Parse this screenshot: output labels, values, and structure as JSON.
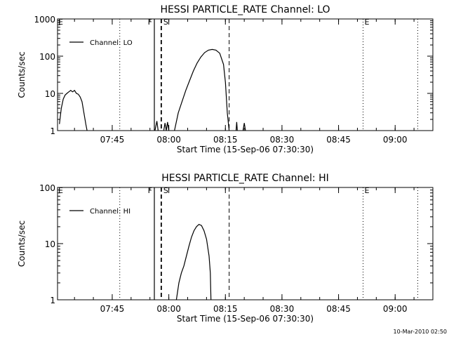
{
  "chart_data": [
    {
      "type": "line",
      "title": "HESSI PARTICLE_RATE Channel: LO",
      "xlabel": "Start Time (15-Sep-06 07:30:30)",
      "ylabel": "Counts/sec",
      "yscale": "log",
      "ylim": [
        1,
        1000
      ],
      "xlim": [
        "07:30:30",
        "09:10:00"
      ],
      "xticks": [
        "07:45",
        "08:00",
        "08:15",
        "08:30",
        "08:45",
        "09:00"
      ],
      "yticks": [
        "1",
        "10",
        "100",
        "1000"
      ],
      "legend": {
        "label": "Channel: LO",
        "position": "top-left"
      },
      "markers": {
        "F": "07:56:10",
        "S": "07:58:00",
        "E": "08:51:30"
      },
      "series": [
        {
          "name": "Channel: LO",
          "segments": [
            [
              [
                "07:31:00",
                1.5
              ],
              [
                "07:31:30",
                4
              ],
              [
                "07:32:00",
                7
              ],
              [
                "07:32:30",
                9
              ],
              [
                "07:33:00",
                10
              ],
              [
                "07:33:30",
                11
              ],
              [
                "07:34:00",
                12
              ],
              [
                "07:34:30",
                11
              ],
              [
                "07:35:00",
                12
              ],
              [
                "07:35:30",
                10
              ],
              [
                "07:36:00",
                9.5
              ],
              [
                "07:36:30",
                8
              ],
              [
                "07:37:00",
                6
              ],
              [
                "07:37:30",
                3
              ],
              [
                "07:38:00",
                1.5
              ],
              [
                "07:38:20",
                1
              ]
            ],
            [
              [
                "07:56:20",
                1
              ],
              [
                "07:56:50",
                1.8
              ],
              [
                "07:57:10",
                1
              ]
            ],
            [
              [
                "07:58:40",
                1
              ],
              [
                "07:59:00",
                1.6
              ],
              [
                "07:59:20",
                1
              ],
              [
                "07:59:40",
                1.7
              ],
              [
                "08:00:00",
                1
              ]
            ],
            [
              [
                "08:01:30",
                1
              ],
              [
                "08:02:30",
                3
              ],
              [
                "08:03:30",
                6
              ],
              [
                "08:04:30",
                12
              ],
              [
                "08:05:30",
                22
              ],
              [
                "08:06:30",
                40
              ],
              [
                "08:07:30",
                65
              ],
              [
                "08:08:30",
                95
              ],
              [
                "08:09:30",
                125
              ],
              [
                "08:10:30",
                145
              ],
              [
                "08:11:30",
                152
              ],
              [
                "08:12:30",
                145
              ],
              [
                "08:13:30",
                120
              ],
              [
                "08:14:30",
                60
              ],
              [
                "08:15:00",
                20
              ],
              [
                "08:15:30",
                3
              ],
              [
                "08:16:00",
                1
              ]
            ],
            [
              [
                "08:17:50",
                1
              ],
              [
                "08:18:00",
                1.7
              ],
              [
                "08:18:10",
                1
              ]
            ],
            [
              [
                "08:19:40",
                1
              ],
              [
                "08:20:00",
                1.6
              ],
              [
                "08:20:20",
                1
              ]
            ]
          ]
        }
      ]
    },
    {
      "type": "line",
      "title": "HESSI PARTICLE_RATE Channel: HI",
      "xlabel": "Start Time (15-Sep-06 07:30:30)",
      "ylabel": "Counts/sec",
      "yscale": "log",
      "ylim": [
        1,
        100
      ],
      "xlim": [
        "07:30:30",
        "09:10:00"
      ],
      "xticks": [
        "07:45",
        "08:00",
        "08:15",
        "08:30",
        "08:45",
        "09:00"
      ],
      "yticks": [
        "1",
        "10",
        "100"
      ],
      "legend": {
        "label": "Channel: HI",
        "position": "top-left"
      },
      "markers": {
        "F": "07:56:10",
        "S": "07:58:00",
        "E": "08:51:30"
      },
      "series": [
        {
          "name": "Channel: HI",
          "segments": [
            [
              [
                "08:02:00",
                1
              ],
              [
                "08:02:40",
                2
              ],
              [
                "08:03:20",
                3
              ],
              [
                "08:04:00",
                4
              ],
              [
                "08:04:40",
                6
              ],
              [
                "08:05:20",
                9
              ],
              [
                "08:06:00",
                13
              ],
              [
                "08:06:40",
                17
              ],
              [
                "08:07:20",
                20
              ],
              [
                "08:08:00",
                22
              ],
              [
                "08:08:40",
                21
              ],
              [
                "08:09:20",
                17
              ],
              [
                "08:10:00",
                12
              ],
              [
                "08:10:40",
                6
              ],
              [
                "08:11:00",
                3
              ],
              [
                "08:11:10",
                1
              ]
            ]
          ]
        }
      ]
    }
  ],
  "footer": {
    "timestamp": "10-Mar-2010 02:50"
  }
}
